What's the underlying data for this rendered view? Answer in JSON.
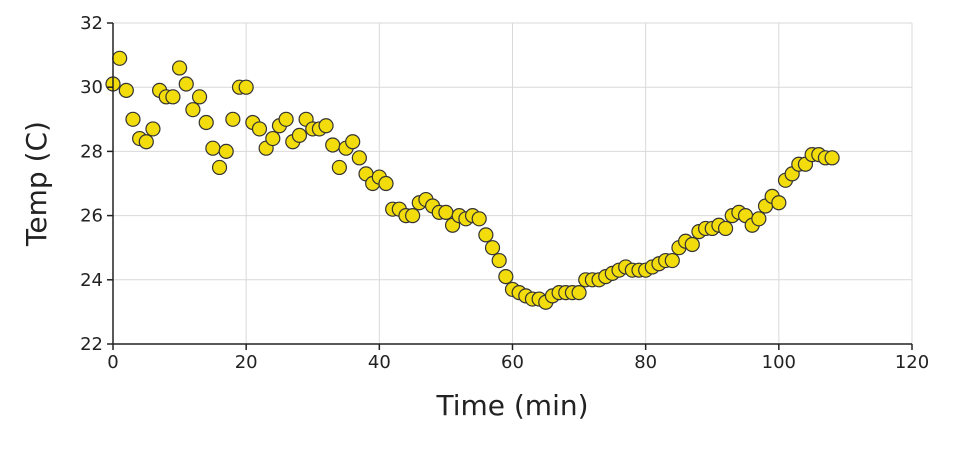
{
  "chart_data": {
    "type": "scatter",
    "xlabel": "Time (min)",
    "ylabel": "Temp (C)",
    "xlim": [
      0,
      120
    ],
    "ylim": [
      22,
      32
    ],
    "xticks": [
      0,
      20,
      40,
      60,
      80,
      100,
      120
    ],
    "yticks": [
      22,
      24,
      26,
      28,
      30,
      32
    ],
    "grid": true,
    "colors": {
      "marker_fill": "#f2dc0c",
      "marker_edge": "#333333",
      "grid": "#d9d9d9"
    },
    "series": [
      {
        "x": [
          0,
          1,
          2,
          3,
          4,
          5,
          6,
          7,
          8,
          9,
          10,
          11,
          12,
          13,
          14,
          15,
          16,
          17,
          18,
          19,
          20,
          21,
          22,
          23,
          24,
          25,
          26,
          27,
          28,
          29,
          30,
          31,
          32,
          33,
          34,
          35,
          36,
          37,
          38,
          39,
          40,
          41,
          42,
          43,
          44,
          45,
          46,
          47,
          48,
          49,
          50,
          51,
          52,
          53,
          54,
          55,
          56,
          57,
          58,
          59,
          60,
          61,
          62,
          63,
          64,
          65,
          66,
          67,
          68,
          69,
          70,
          71,
          72,
          73,
          74,
          75,
          76,
          77,
          78,
          79,
          80,
          81,
          82,
          83,
          84,
          85,
          86,
          87,
          88,
          89,
          90,
          91,
          92,
          93,
          94,
          95,
          96,
          97,
          98,
          99,
          100,
          101,
          102,
          103,
          104,
          105,
          106,
          107,
          108
        ],
        "y": [
          30.1,
          30.9,
          29.9,
          29.0,
          28.4,
          28.3,
          28.7,
          29.9,
          29.7,
          29.7,
          30.6,
          30.1,
          29.3,
          29.7,
          28.9,
          28.1,
          27.5,
          28.0,
          29.0,
          30.0,
          30.0,
          28.9,
          28.7,
          28.1,
          28.4,
          28.8,
          29.0,
          28.3,
          28.5,
          29.0,
          28.7,
          28.7,
          28.8,
          28.2,
          27.5,
          28.1,
          28.3,
          27.8,
          27.3,
          27.0,
          27.2,
          27.0,
          26.2,
          26.2,
          26.0,
          26.0,
          26.4,
          26.5,
          26.3,
          26.1,
          26.1,
          25.7,
          26.0,
          25.9,
          26.0,
          25.9,
          25.4,
          25.0,
          24.6,
          24.1,
          23.7,
          23.6,
          23.5,
          23.4,
          23.4,
          23.3,
          23.5,
          23.6,
          23.6,
          23.6,
          23.6,
          24.0,
          24.0,
          24.0,
          24.1,
          24.2,
          24.3,
          24.4,
          24.3,
          24.3,
          24.3,
          24.4,
          24.5,
          24.6,
          24.6,
          25.0,
          25.2,
          25.1,
          25.5,
          25.6,
          25.6,
          25.7,
          25.6,
          26.0,
          26.1,
          26.0,
          25.7,
          25.9,
          26.3,
          26.6,
          26.4,
          27.1,
          27.3,
          27.6,
          27.6,
          27.9,
          27.9,
          27.8,
          27.8
        ]
      }
    ]
  }
}
